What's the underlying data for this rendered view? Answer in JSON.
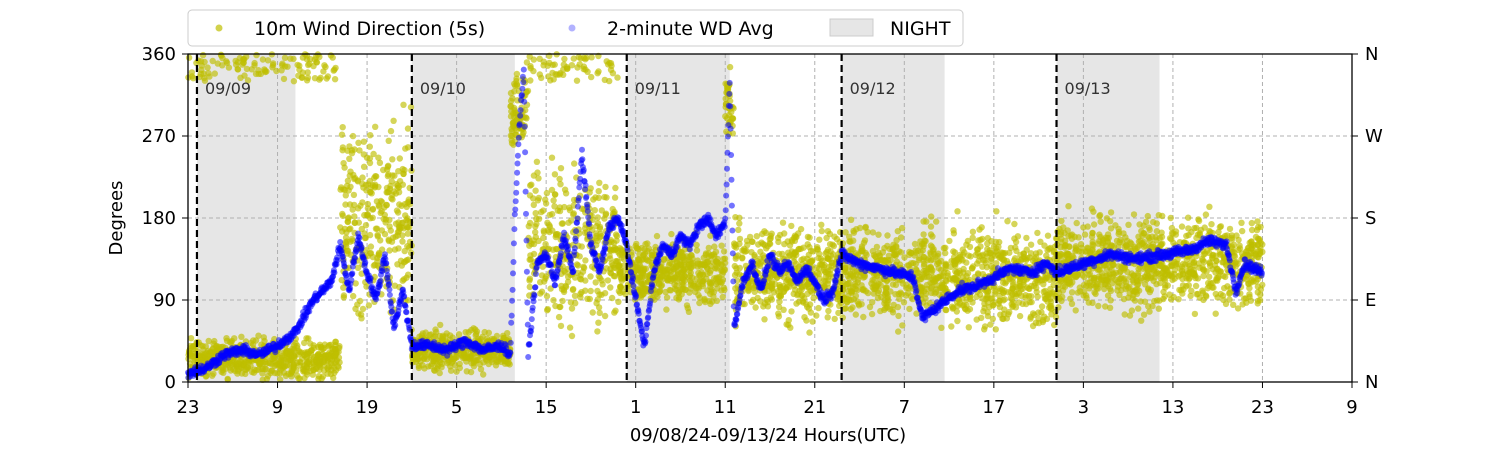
{
  "chart_data": {
    "type": "scatter",
    "xlabel": "09/08/24-09/13/24  Hours(UTC)",
    "ylabel": "Degrees",
    "x_range_hours": [
      0,
      130
    ],
    "ylim": [
      0,
      360
    ],
    "x_tick_labels": [
      "23",
      "9",
      "19",
      "5",
      "15",
      "1",
      "11",
      "21",
      "7",
      "17",
      "3",
      "13",
      "23",
      "9"
    ],
    "y_tick_labels": [
      "0",
      "90",
      "180",
      "270",
      "360"
    ],
    "y_right_tick_labels": [
      "N",
      "E",
      "S",
      "W",
      "N"
    ],
    "grid": true,
    "legend_location": "top",
    "legend": [
      {
        "label": "10m Wind Direction (5s)",
        "color": "#bfbf00"
      },
      {
        "label": "2-minute WD Avg",
        "color": "#0000ff"
      },
      {
        "label": "NIGHT",
        "color": "#e6e6e6"
      }
    ],
    "day_markers": [
      {
        "hour": 1,
        "label": "09/09"
      },
      {
        "hour": 25,
        "label": "09/10"
      },
      {
        "hour": 49,
        "label": "09/11"
      },
      {
        "hour": 73,
        "label": "09/12"
      },
      {
        "hour": 97,
        "label": "09/13"
      }
    ],
    "night_periods": [
      [
        1,
        12
      ],
      [
        25,
        36.5
      ],
      [
        49,
        60.5
      ],
      [
        73,
        84.5
      ],
      [
        97,
        108.5
      ]
    ],
    "series": [
      {
        "name": "10m Wind Direction (5s)",
        "color": "#bfbf00",
        "segments": [
          {
            "x0": 0,
            "x1": 17,
            "center": 25,
            "spread": 30,
            "wrap_high": true
          },
          {
            "x0": 17,
            "x1": 25,
            "center": 180,
            "spread": 150
          },
          {
            "x0": 25,
            "x1": 36,
            "center": 35,
            "spread": 30
          },
          {
            "x0": 36,
            "x1": 38,
            "center": 300,
            "spread": 60
          },
          {
            "x0": 38,
            "x1": 48,
            "center": 150,
            "spread": 120,
            "wrap_high": true
          },
          {
            "x0": 48,
            "x1": 60,
            "center": 120,
            "spread": 50
          },
          {
            "x0": 60,
            "x1": 61,
            "center": 300,
            "spread": 60
          },
          {
            "x0": 61,
            "x1": 73,
            "center": 120,
            "spread": 70
          },
          {
            "x0": 73,
            "x1": 84,
            "center": 120,
            "spread": 70
          },
          {
            "x0": 84,
            "x1": 97,
            "center": 115,
            "spread": 75
          },
          {
            "x0": 97,
            "x1": 120,
            "center": 130,
            "spread": 70
          }
        ]
      },
      {
        "name": "2-minute WD Avg",
        "color": "#0000ff",
        "path": [
          [
            0,
            10
          ],
          [
            2,
            15
          ],
          [
            4,
            30
          ],
          [
            6,
            35
          ],
          [
            8,
            30
          ],
          [
            10,
            40
          ],
          [
            12,
            55
          ],
          [
            14,
            90
          ],
          [
            16,
            110
          ],
          [
            17,
            150
          ],
          [
            18,
            100
          ],
          [
            19,
            160
          ],
          [
            20,
            120
          ],
          [
            21,
            90
          ],
          [
            22,
            140
          ],
          [
            23,
            60
          ],
          [
            24,
            100
          ],
          [
            25,
            40
          ],
          [
            27,
            40
          ],
          [
            29,
            35
          ],
          [
            31,
            45
          ],
          [
            33,
            35
          ],
          [
            35,
            40
          ],
          [
            36,
            30
          ],
          [
            36.5,
            180
          ],
          [
            37,
            280
          ],
          [
            37.5,
            340
          ],
          [
            38,
            30
          ],
          [
            39,
            130
          ],
          [
            40,
            140
          ],
          [
            41,
            110
          ],
          [
            42,
            160
          ],
          [
            43,
            120
          ],
          [
            44,
            250
          ],
          [
            45,
            150
          ],
          [
            46,
            120
          ],
          [
            47,
            170
          ],
          [
            48,
            180
          ],
          [
            49,
            150
          ],
          [
            50,
            90
          ],
          [
            51,
            40
          ],
          [
            52,
            120
          ],
          [
            53,
            150
          ],
          [
            54,
            140
          ],
          [
            55,
            160
          ],
          [
            56,
            150
          ],
          [
            57,
            170
          ],
          [
            58,
            180
          ],
          [
            59,
            160
          ],
          [
            60,
            175
          ],
          [
            60.5,
            330
          ],
          [
            61,
            60
          ],
          [
            62,
            110
          ],
          [
            63,
            130
          ],
          [
            64,
            100
          ],
          [
            65,
            140
          ],
          [
            66,
            120
          ],
          [
            67,
            130
          ],
          [
            68,
            110
          ],
          [
            69,
            125
          ],
          [
            70,
            110
          ],
          [
            71,
            90
          ],
          [
            72,
            100
          ],
          [
            73,
            140
          ],
          [
            75,
            130
          ],
          [
            77,
            125
          ],
          [
            79,
            120
          ],
          [
            81,
            115
          ],
          [
            82,
            70
          ],
          [
            84,
            85
          ],
          [
            86,
            100
          ],
          [
            88,
            105
          ],
          [
            90,
            115
          ],
          [
            92,
            125
          ],
          [
            94,
            120
          ],
          [
            96,
            130
          ],
          [
            97,
            120
          ],
          [
            100,
            130
          ],
          [
            103,
            140
          ],
          [
            106,
            135
          ],
          [
            109,
            140
          ],
          [
            112,
            145
          ],
          [
            114,
            155
          ],
          [
            116,
            150
          ],
          [
            117,
            100
          ],
          [
            118,
            130
          ],
          [
            120,
            120
          ]
        ]
      }
    ]
  }
}
